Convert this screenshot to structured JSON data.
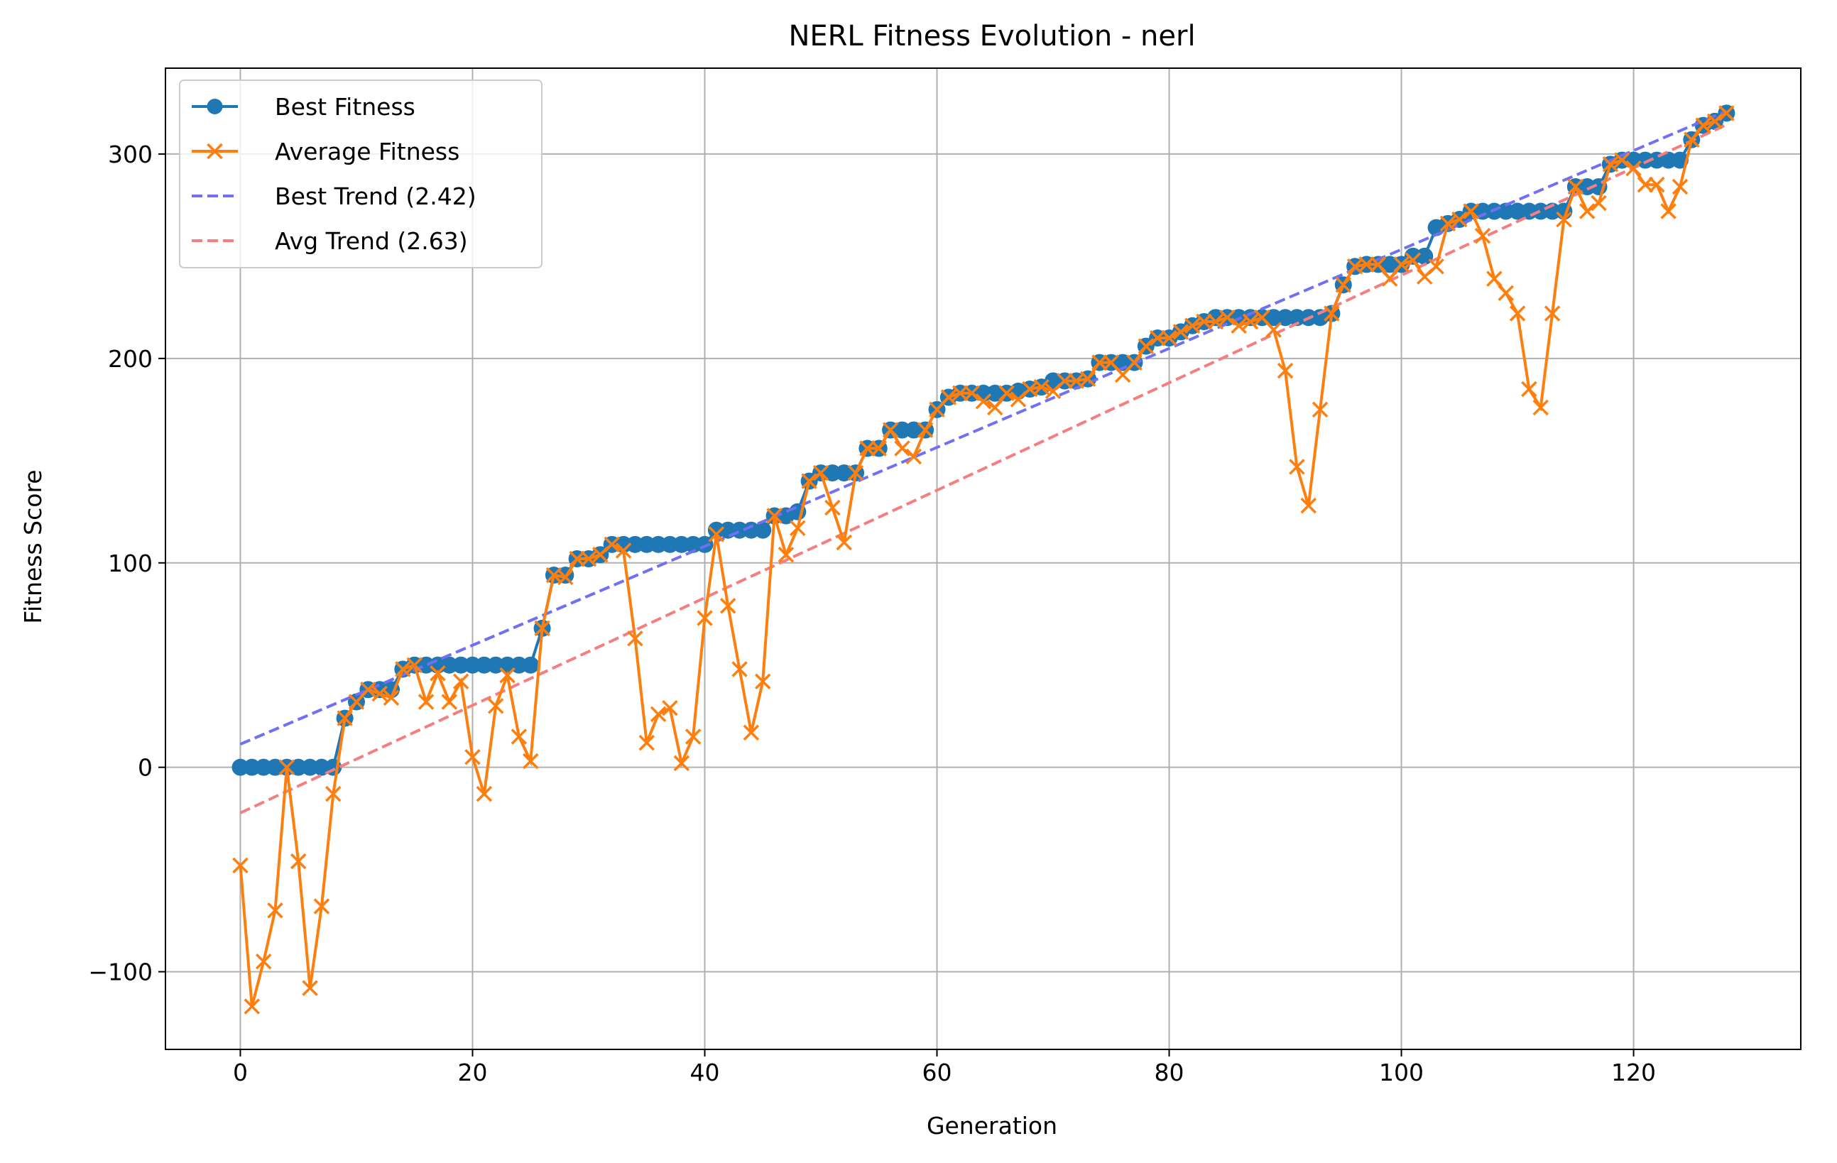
{
  "chart_data": {
    "type": "line",
    "title": "NERL Fitness Evolution - nerl",
    "xlabel": "Generation",
    "ylabel": "Fitness Score",
    "xlim": [
      -6.45,
      134.4
    ],
    "ylim": [
      -138,
      342
    ],
    "xticks": [
      0,
      20,
      40,
      60,
      80,
      100,
      120
    ],
    "yticks": [
      -100,
      0,
      100,
      200,
      300
    ],
    "ytick_labels": [
      "−100",
      "0",
      "100",
      "200",
      "300"
    ],
    "grid": true,
    "legend_position": "top-left",
    "x_start": 0,
    "series": [
      {
        "name": "Best Fitness",
        "style": "solid",
        "marker": "circle",
        "color": "#1f77b4",
        "values": [
          0,
          0,
          0,
          0,
          0,
          0,
          0,
          0,
          0,
          24,
          32,
          38,
          38,
          38,
          48,
          50,
          50,
          50,
          50,
          50,
          50,
          50,
          50,
          50,
          50,
          50,
          68,
          94,
          94,
          102,
          102,
          104,
          109,
          109,
          109,
          109,
          109,
          109,
          109,
          109,
          109,
          116,
          116,
          116,
          116,
          116,
          123,
          123,
          125,
          140,
          144,
          144,
          144,
          144,
          156,
          156,
          165,
          165,
          165,
          165,
          175,
          181,
          183,
          183,
          183,
          183,
          183,
          184,
          185,
          186,
          189,
          189,
          189,
          190,
          198,
          198,
          198,
          198,
          206,
          210,
          210,
          213,
          216,
          218,
          220,
          220,
          220,
          220,
          220,
          220,
          220,
          220,
          220,
          220,
          222,
          236,
          245,
          246,
          246,
          246,
          246,
          250,
          250,
          264,
          266,
          268,
          272,
          272,
          272,
          272,
          272,
          272,
          272,
          272,
          272,
          284,
          284,
          284,
          295,
          297,
          297,
          297,
          297,
          297,
          297,
          307,
          314,
          316,
          320
        ]
      },
      {
        "name": "Average Fitness",
        "style": "solid",
        "marker": "x",
        "color": "#ff7f0e",
        "values": [
          -48,
          -117,
          -95,
          -70,
          0,
          -46,
          -108,
          -68,
          -13,
          24,
          32,
          38,
          36,
          34,
          48,
          50,
          32,
          46,
          32,
          42,
          5,
          -13,
          30,
          45,
          15,
          3,
          68,
          94,
          93,
          102,
          102,
          104,
          109,
          106,
          63,
          12,
          26,
          29,
          2,
          15,
          73,
          114,
          79,
          48,
          17,
          42,
          123,
          104,
          117,
          140,
          144,
          127,
          110,
          144,
          156,
          156,
          165,
          156,
          152,
          165,
          175,
          181,
          183,
          183,
          179,
          176,
          183,
          180,
          185,
          186,
          184,
          189,
          189,
          190,
          198,
          198,
          192,
          198,
          206,
          210,
          210,
          213,
          216,
          218,
          218,
          220,
          216,
          218,
          220,
          214,
          194,
          147,
          128,
          175,
          222,
          236,
          245,
          246,
          246,
          239,
          246,
          248,
          240,
          245,
          266,
          268,
          272,
          260,
          239,
          232,
          222,
          185,
          176,
          222,
          268,
          284,
          272,
          276,
          295,
          297,
          293,
          285,
          285,
          272,
          284,
          307,
          314,
          316,
          320
        ]
      },
      {
        "name": "Best Trend (2.42)",
        "style": "dashed",
        "color": "#7070f5",
        "slope": 2.42,
        "intercept": 11.3
      },
      {
        "name": "Avg Trend (2.63)",
        "style": "dashed",
        "color": "#f57f7f",
        "slope": 2.63,
        "intercept": -22.3
      }
    ]
  }
}
